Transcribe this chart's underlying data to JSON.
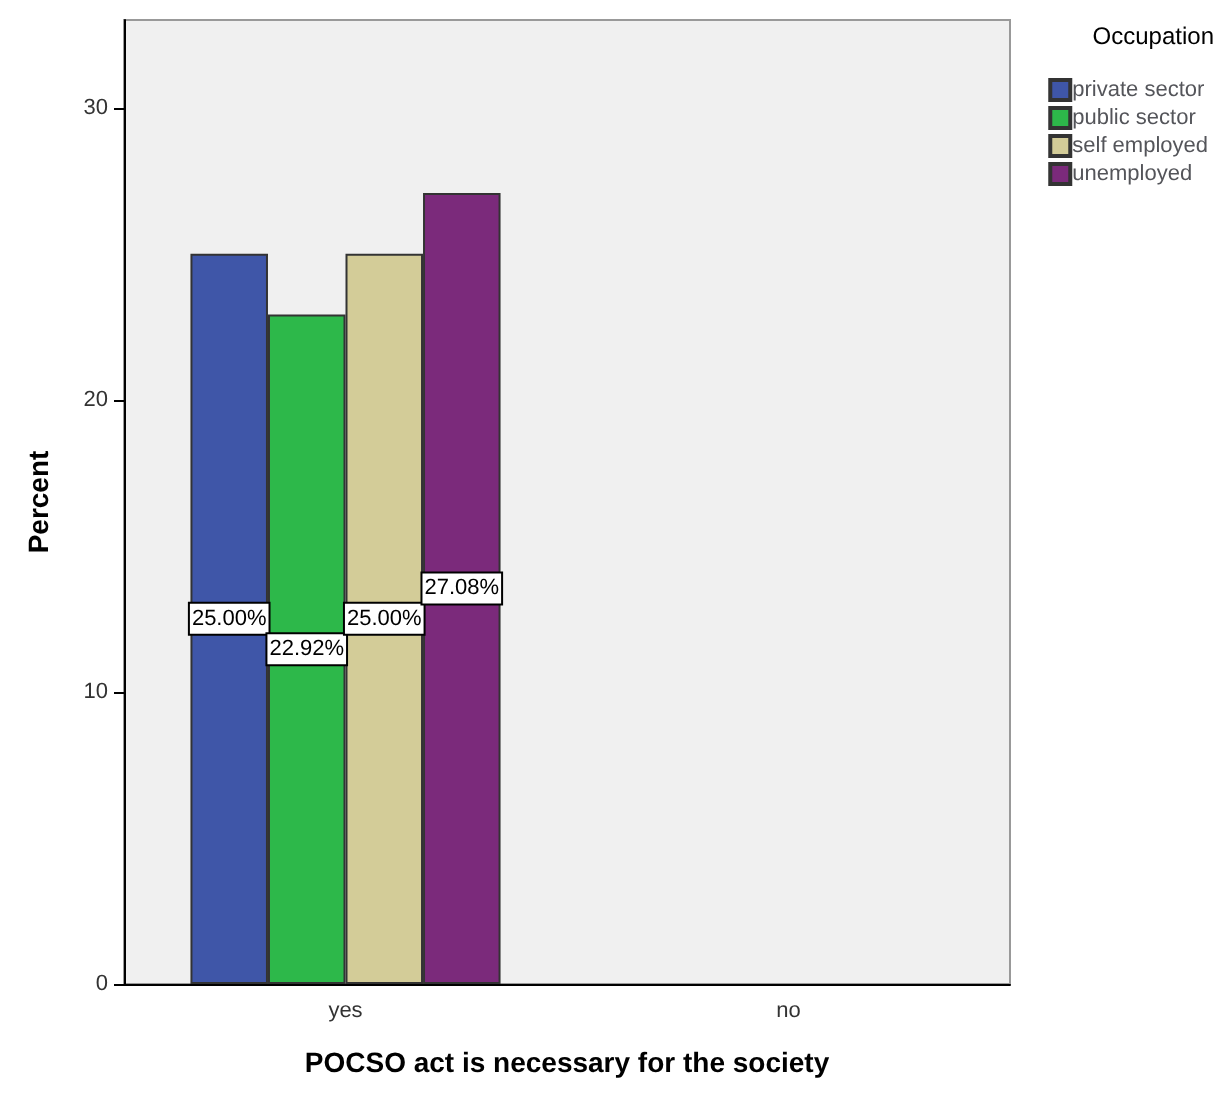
{
  "chart_data": {
    "type": "bar",
    "xlabel": "POCSO act is necessary for the society",
    "ylabel": "Percent",
    "legend_title": "Occupation",
    "legend": "top right",
    "categories": [
      "yes",
      "no"
    ],
    "series": [
      {
        "name": "private sector",
        "color": "#3f56a8",
        "values": [
          25.0,
          null
        ],
        "value_labels": [
          "25.00%",
          null
        ]
      },
      {
        "name": "public sector",
        "color": "#2db84a",
        "values": [
          22.92,
          null
        ],
        "value_labels": [
          "22.92%",
          null
        ]
      },
      {
        "name": "self employed",
        "color": "#d3cc98",
        "values": [
          25.0,
          null
        ],
        "value_labels": [
          "25.00%",
          null
        ]
      },
      {
        "name": "unemployed",
        "color": "#7b2a7b",
        "values": [
          27.08,
          null
        ],
        "value_labels": [
          "27.08%",
          null
        ]
      }
    ],
    "ylim": [
      0,
      33
    ],
    "yticks": [
      0,
      10,
      20,
      30
    ],
    "grid": false
  }
}
